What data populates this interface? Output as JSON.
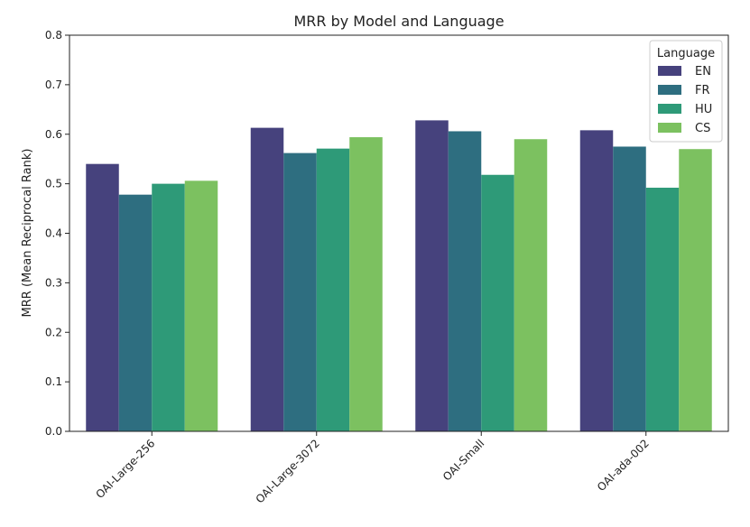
{
  "chart_data": {
    "type": "bar",
    "title": "MRR by Model and Language",
    "xlabel": "",
    "ylabel": "MRR  (Mean Reciprocal Rank)",
    "ylim": [
      0,
      0.8
    ],
    "yticks": [
      "0.0",
      "0.1",
      "0.2",
      "0.3",
      "0.4",
      "0.5",
      "0.6",
      "0.7",
      "0.8"
    ],
    "categories": [
      "OAI-Large-256",
      "OAI-Large-3072",
      "OAI-Small",
      "OAI-ada-002"
    ],
    "series": [
      {
        "name": "EN",
        "color": "#46427d",
        "values": [
          0.54,
          0.613,
          0.628,
          0.608
        ]
      },
      {
        "name": "FR",
        "color": "#2e6e80",
        "values": [
          0.478,
          0.562,
          0.606,
          0.575
        ]
      },
      {
        "name": "HU",
        "color": "#2e9a78",
        "values": [
          0.5,
          0.571,
          0.518,
          0.492
        ]
      },
      {
        "name": "CS",
        "color": "#7cc160",
        "values": [
          0.506,
          0.594,
          0.59,
          0.57
        ]
      }
    ],
    "grid": false,
    "legend": {
      "title": "Language",
      "placement": "top-right"
    }
  }
}
